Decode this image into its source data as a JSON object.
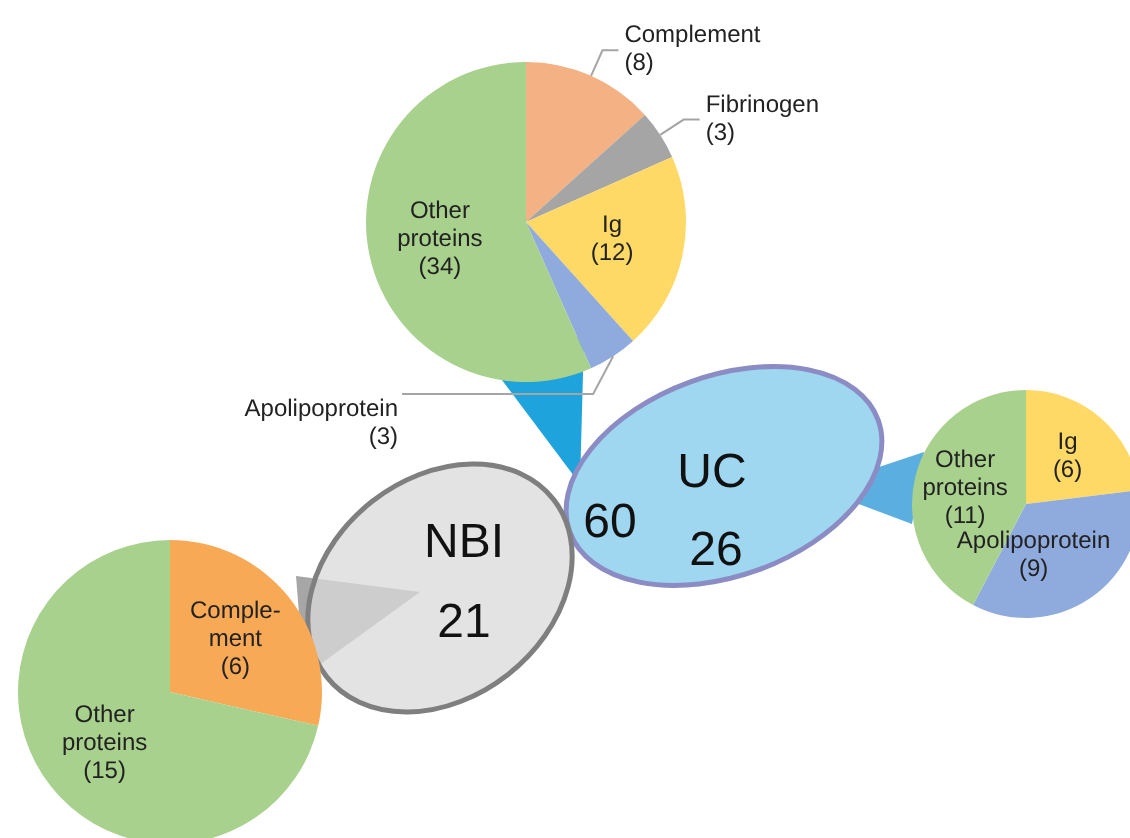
{
  "chart_data": [
    {
      "type": "other",
      "categories": [
        "NBI",
        "UC"
      ],
      "values": [
        21,
        26
      ],
      "data_labels": true,
      "colors": [
        "#d9d9d9",
        "#9fd6f0"
      ],
      "annotations": [
        "60"
      ]
    },
    {
      "type": "pie",
      "categories": [
        "Complement",
        "Fibrinogen",
        "Ig",
        "Apolipoprotein",
        "Other proteins"
      ],
      "values": [
        8,
        3,
        12,
        3,
        34
      ],
      "value_labels": [
        "(8)",
        "(3)",
        "(12)",
        "(3)",
        "(34)"
      ],
      "colors": [
        "#f4b183",
        "#a5a5a5",
        "#ffd966",
        "#8faadc",
        "#a9d18e"
      ],
      "data_labels": true
    },
    {
      "type": "pie",
      "categories": [
        "Ig",
        "Apolipoprotein",
        "Other proteins"
      ],
      "values": [
        6,
        9,
        11
      ],
      "value_labels": [
        "(6)",
        "(9)",
        "(11)"
      ],
      "colors": [
        "#ffd966",
        "#8faadc",
        "#a9d18e"
      ],
      "data_labels": true
    },
    {
      "type": "pie",
      "categories": [
        "Comple-ment",
        "Other proteins"
      ],
      "values": [
        6,
        15
      ],
      "value_labels": [
        "(6)",
        "(15)"
      ],
      "colors": [
        "#f8a955",
        "#a9d18e"
      ],
      "data_labels": true
    }
  ]
}
